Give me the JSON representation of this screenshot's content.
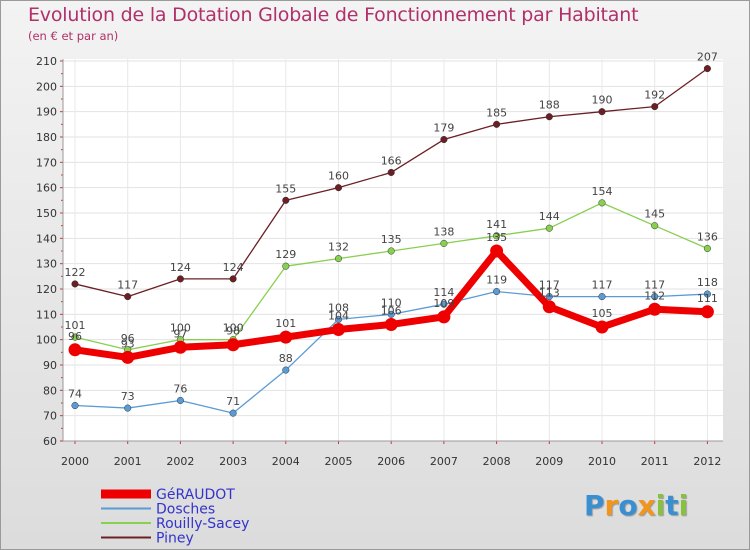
{
  "chart_data": {
    "type": "line",
    "title": "Evolution de la Dotation Globale de Fonctionnement par Habitant",
    "subtitle": "(en € et par an)",
    "xlabel": "",
    "ylabel": "",
    "ylim": [
      60,
      210
    ],
    "ytick_step": 10,
    "grid": true,
    "legend_position": "bottom-left",
    "categories": [
      "2000",
      "2001",
      "2002",
      "2003",
      "2004",
      "2005",
      "2006",
      "2007",
      "2008",
      "2009",
      "2010",
      "2011",
      "2012"
    ],
    "series": [
      {
        "name": "Piney",
        "color": "#6b1f24",
        "values": [
          122,
          117,
          124,
          124,
          155,
          160,
          166,
          179,
          185,
          188,
          190,
          192,
          207
        ]
      },
      {
        "name": "Rouilly-Sacey",
        "color": "#88d050",
        "values": [
          101,
          96,
          100,
          100,
          129,
          132,
          135,
          138,
          141,
          144,
          154,
          145,
          136
        ]
      },
      {
        "name": "Dosches",
        "color": "#5b9bd5",
        "values": [
          74,
          73,
          76,
          71,
          88,
          108,
          110,
          114,
          119,
          117,
          117,
          117,
          118
        ]
      },
      {
        "name": "GéRAUDOT",
        "color": "#ee0000",
        "values": [
          96,
          93,
          97,
          98,
          101,
          104,
          106,
          109,
          135,
          113,
          105,
          112,
          111
        ]
      }
    ],
    "legend_order": [
      "GéRAUDOT",
      "Dosches",
      "Rouilly-Sacey",
      "Piney"
    ],
    "legend_color": "#3333cc"
  },
  "logo": {
    "text": "Proxiti",
    "letters": [
      "P",
      "r",
      "o",
      "x",
      "i",
      "t",
      "i"
    ],
    "colors": [
      "#3a8fd0",
      "#f0961e",
      "#3a8fd0",
      "#f0961e",
      "#88c040",
      "#3a8fd0",
      "#88c040"
    ]
  }
}
